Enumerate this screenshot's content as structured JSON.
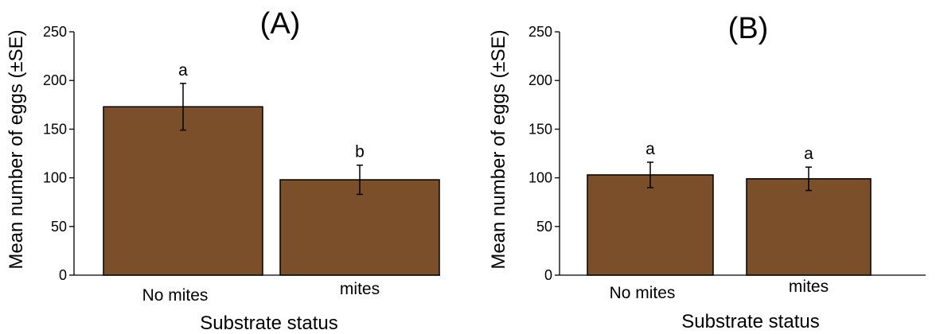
{
  "chart_data": [
    {
      "type": "bar",
      "title": "(A)",
      "xlabel": "Substrate status",
      "ylabel": "Mean number of eggs (±SE)",
      "ylim": [
        0,
        250
      ],
      "yticks": [
        0,
        50,
        100,
        150,
        200,
        250
      ],
      "categories": [
        "No mites",
        "mites"
      ],
      "values": [
        173,
        98
      ],
      "errors": [
        24,
        15
      ],
      "significance": [
        "a",
        "b"
      ],
      "bar_color": "#7b4f2a"
    },
    {
      "type": "bar",
      "title": "(B)",
      "xlabel": "Substrate status",
      "ylabel": "Mean number of eggs (±SE)",
      "ylim": [
        0,
        250
      ],
      "yticks": [
        0,
        50,
        100,
        150,
        200,
        250
      ],
      "categories": [
        "No mites",
        "mites"
      ],
      "values": [
        103,
        99
      ],
      "errors": [
        13,
        12
      ],
      "significance": [
        "a",
        "a"
      ],
      "bar_color": "#7b4f2a"
    }
  ]
}
